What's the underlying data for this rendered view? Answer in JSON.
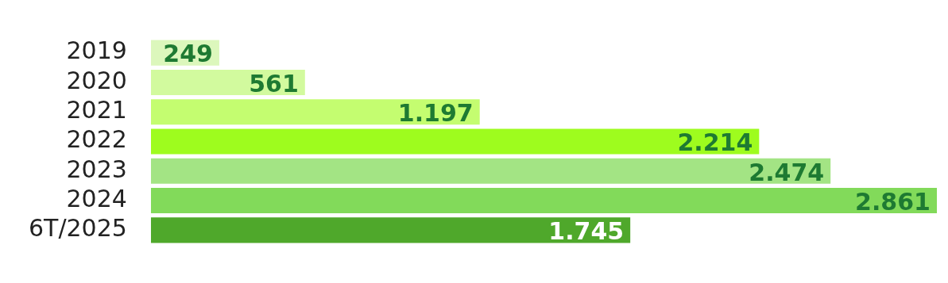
{
  "chart_data": {
    "type": "bar",
    "orientation": "horizontal",
    "categories": [
      "2019",
      "2020",
      "2021",
      "2022",
      "2023",
      "2024",
      "6T/2025"
    ],
    "values": [
      249,
      561,
      1197,
      2214,
      2474,
      2861,
      1745
    ],
    "colors": [
      "#dcf7bc",
      "#d2fa9e",
      "#c4fd70",
      "#9efc1e",
      "#a3e484",
      "#82da5a",
      "#4fa82b"
    ],
    "value_labels": [
      "249",
      "561",
      "1.197",
      "2.214",
      "2.474",
      "2.861",
      "1.745"
    ],
    "grid": false,
    "legend": false
  }
}
